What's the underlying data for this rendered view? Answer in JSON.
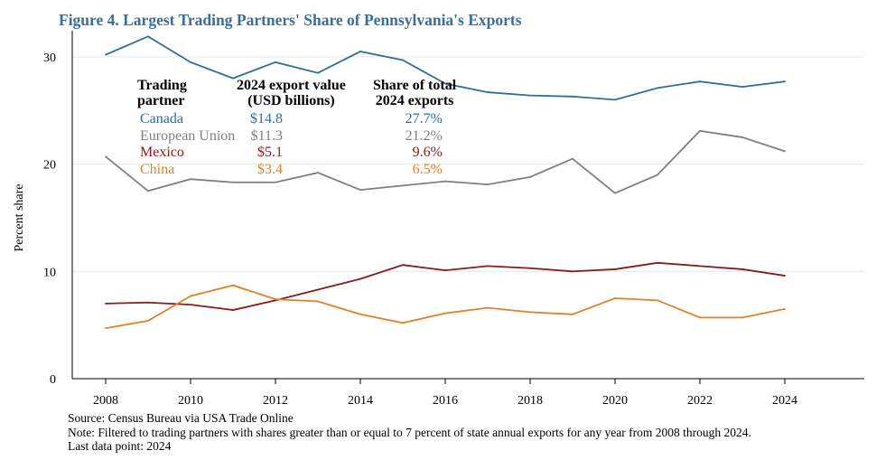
{
  "title": "Figure 4. Largest Trading Partners' Share of Pennsylvania's Exports",
  "chart_data": {
    "type": "line",
    "title": "Figure 4. Largest Trading Partners' Share of Pennsylvania's Exports",
    "xlabel": "",
    "ylabel": "Percent share",
    "x": [
      2008,
      2009,
      2010,
      2011,
      2012,
      2013,
      2014,
      2015,
      2016,
      2017,
      2018,
      2019,
      2020,
      2021,
      2022,
      2023,
      2024
    ],
    "xticks": [
      "2008",
      "2010",
      "2012",
      "2014",
      "2016",
      "2018",
      "2020",
      "2022",
      "2024"
    ],
    "yticks": [
      "0",
      "10",
      "20",
      "30"
    ],
    "ylim": [
      0,
      32.5
    ],
    "xlim": [
      2007.2,
      2025.9
    ],
    "grid": "horizontal",
    "series": [
      {
        "name": "Canada",
        "color": "#2e6e9e",
        "values": [
          30.2,
          31.9,
          29.5,
          28.0,
          29.5,
          28.5,
          30.5,
          29.7,
          27.5,
          26.7,
          26.4,
          26.3,
          26.0,
          27.1,
          27.7,
          27.2,
          27.7
        ]
      },
      {
        "name": "European Union",
        "color": "#808080",
        "values": [
          20.7,
          17.5,
          18.6,
          18.3,
          18.3,
          19.2,
          17.6,
          18.0,
          18.4,
          18.1,
          18.8,
          20.5,
          17.3,
          19.0,
          23.1,
          22.5,
          21.2
        ]
      },
      {
        "name": "Mexico",
        "color": "#8b1a1a",
        "values": [
          7.0,
          7.1,
          6.9,
          6.4,
          7.3,
          8.3,
          9.3,
          10.6,
          10.1,
          10.5,
          10.3,
          10.0,
          10.2,
          10.8,
          10.5,
          10.2,
          9.6
        ]
      },
      {
        "name": "China",
        "color": "#e0812b",
        "values": [
          4.7,
          5.4,
          7.7,
          8.7,
          7.4,
          7.2,
          6.0,
          5.2,
          6.1,
          6.6,
          6.2,
          6.0,
          7.5,
          7.3,
          5.7,
          5.7,
          6.5
        ]
      }
    ],
    "table": {
      "headers": [
        "Trading partner",
        "2024 export value (USD billions)",
        "Share of total 2024 exports"
      ],
      "header_lines": [
        [
          "Trading",
          "partner"
        ],
        [
          "2024 export value",
          "(USD billions)"
        ],
        [
          "Share of total",
          "2024 exports"
        ]
      ],
      "rows": [
        {
          "partner": "Canada",
          "value": "$14.8",
          "share": "27.7%",
          "color": "#2e6e9e"
        },
        {
          "partner": "European Union",
          "value": "$11.3",
          "share": "21.2%",
          "color": "#808080"
        },
        {
          "partner": "Mexico",
          "value": "$5.1",
          "share": "9.6%",
          "color": "#8b1a1a"
        },
        {
          "partner": "China",
          "value": "$3.4",
          "share": "6.5%",
          "color": "#e0812b"
        }
      ]
    }
  },
  "notes": {
    "source": "Source: Census Bureau via USA Trade Online",
    "note": "Note: Filtered to trading partners with shares greater than or equal to 7 percent of state annual exports for any year from 2008 through 2024.",
    "last": "Last data point: 2024"
  }
}
